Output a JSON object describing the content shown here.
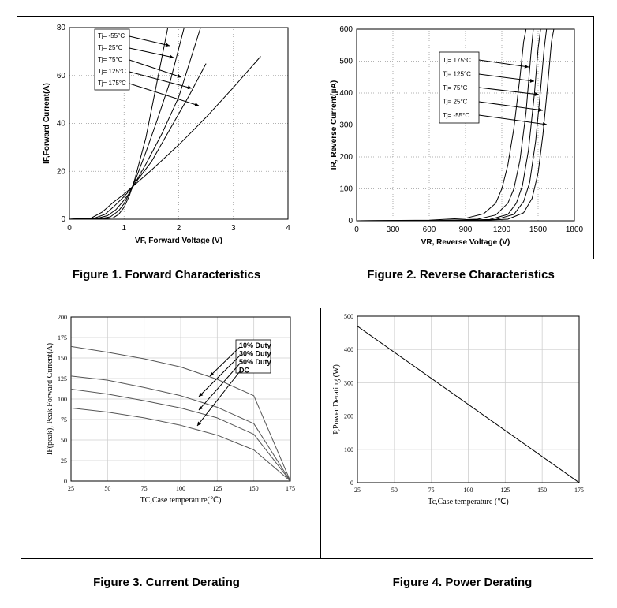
{
  "chart_data": [
    {
      "id": "fig1",
      "type": "line",
      "caption": "Figure 1. Forward Characteristics",
      "xlabel": "VF, Forward Voltage (V)",
      "ylabel": "IF,Forward Current(A)",
      "xlim": [
        0,
        4
      ],
      "ylim": [
        0,
        80
      ],
      "xticks": [
        0,
        1,
        2,
        3,
        4
      ],
      "yticks": [
        0,
        20,
        40,
        60,
        80
      ],
      "grid": true,
      "legend_placement": "top-left",
      "series": [
        {
          "name": "Tj= -55°C",
          "x": [
            0,
            0.6,
            0.8,
            0.9,
            1.0,
            1.1,
            1.2,
            1.4,
            1.6,
            1.8
          ],
          "y": [
            0,
            0.1,
            0.6,
            2,
            5,
            10,
            17,
            34,
            57,
            80
          ]
        },
        {
          "name": "Tj= 25°C",
          "x": [
            0,
            0.55,
            0.75,
            0.9,
            1.0,
            1.1,
            1.2,
            1.4,
            1.6,
            1.85,
            2.1
          ],
          "y": [
            0,
            0.2,
            1,
            3.5,
            6.5,
            11,
            16,
            28,
            41,
            58,
            80
          ]
        },
        {
          "name": "Tj= 75°C",
          "x": [
            0,
            0.5,
            0.7,
            0.85,
            1.0,
            1.1,
            1.2,
            1.4,
            1.7,
            2.0,
            2.4
          ],
          "y": [
            0,
            0.3,
            1.5,
            4,
            8,
            11,
            15,
            23,
            36,
            51,
            80
          ]
        },
        {
          "name": "Tj= 125°C",
          "x": [
            0,
            0.45,
            0.65,
            0.8,
            1.0,
            1.1,
            1.2,
            1.5,
            1.8,
            2.2,
            2.5
          ],
          "y": [
            0,
            0.4,
            2,
            5,
            9.5,
            12,
            15,
            24,
            36,
            52,
            65
          ]
        },
        {
          "name": "Tj= 175°C",
          "x": [
            0,
            0.4,
            0.6,
            0.8,
            1.0,
            1.1,
            1.2,
            1.5,
            2.0,
            2.5,
            3.0,
            3.5
          ],
          "y": [
            0,
            0.5,
            3,
            7,
            10.5,
            12.5,
            14.5,
            20.5,
            31,
            42.5,
            55,
            68
          ]
        }
      ]
    },
    {
      "id": "fig2",
      "type": "line",
      "caption": "Figure 2. Reverse Characteristics",
      "xlabel": "VR, Reverse Voltage (V)",
      "ylabel": "IR, Reverse Current(μA)",
      "xlim": [
        0,
        1800
      ],
      "ylim": [
        0,
        600
      ],
      "xticks": [
        0,
        300,
        600,
        900,
        1200,
        1500,
        1800
      ],
      "yticks": [
        0,
        100,
        200,
        300,
        400,
        500,
        600
      ],
      "grid": true,
      "legend_placement": "top-right",
      "series": [
        {
          "name": "Tj= 175°C",
          "x": [
            0,
            600,
            900,
            1050,
            1150,
            1200,
            1250,
            1300,
            1350,
            1380,
            1400
          ],
          "y": [
            0,
            2,
            8,
            22,
            55,
            100,
            175,
            290,
            450,
            560,
            600
          ]
        },
        {
          "name": "Tj= 125°C",
          "x": [
            0,
            700,
            1000,
            1150,
            1250,
            1300,
            1350,
            1400,
            1440,
            1460
          ],
          "y": [
            0,
            1,
            5,
            18,
            55,
            100,
            190,
            340,
            520,
            600
          ]
        },
        {
          "name": "Tj= 75°C",
          "x": [
            0,
            800,
            1100,
            1250,
            1320,
            1370,
            1420,
            1470,
            1500,
            1520
          ],
          "y": [
            0,
            1,
            4,
            20,
            55,
            110,
            220,
            400,
            540,
            600
          ]
        },
        {
          "name": "Tj= 25°C",
          "x": [
            0,
            900,
            1150,
            1300,
            1380,
            1430,
            1480,
            1520,
            1550,
            1570
          ],
          "y": [
            0,
            1,
            4,
            20,
            60,
            120,
            250,
            410,
            540,
            600
          ]
        },
        {
          "name": "Tj= -55°C",
          "x": [
            0,
            1000,
            1250,
            1380,
            1450,
            1500,
            1540,
            1580,
            1610,
            1630
          ],
          "y": [
            0,
            1,
            5,
            25,
            70,
            150,
            270,
            430,
            560,
            600
          ]
        }
      ]
    },
    {
      "id": "fig3",
      "type": "line",
      "caption": "Figure 3. Current Derating",
      "xlabel": "TC,Case temperature(℃)",
      "ylabel": "IF(peak), Peak Forward Current(A)",
      "xlim": [
        25,
        175
      ],
      "ylim": [
        0,
        200
      ],
      "xticks": [
        25,
        50,
        75,
        100,
        125,
        150,
        175
      ],
      "yticks": [
        0,
        25,
        50,
        75,
        100,
        125,
        150,
        175,
        200
      ],
      "grid": true,
      "legend_placement": "top-right",
      "series": [
        {
          "name": "10% Duty",
          "x": [
            25,
            50,
            75,
            100,
            125,
            150,
            175
          ],
          "y": [
            164,
            157,
            149,
            139,
            124,
            104,
            0
          ]
        },
        {
          "name": "30% Duty",
          "x": [
            25,
            50,
            75,
            100,
            125,
            150,
            175
          ],
          "y": [
            128,
            123,
            114,
            104,
            90,
            70,
            0
          ]
        },
        {
          "name": "50% Duty",
          "x": [
            25,
            50,
            75,
            100,
            125,
            150,
            175
          ],
          "y": [
            112,
            106,
            98,
            89,
            77,
            57,
            0
          ]
        },
        {
          "name": "DC",
          "x": [
            25,
            50,
            75,
            100,
            125,
            150,
            175
          ],
          "y": [
            89,
            84,
            77,
            68,
            56,
            38,
            0
          ]
        }
      ]
    },
    {
      "id": "fig4",
      "type": "line",
      "caption": "Figure 4. Power Derating",
      "xlabel": "Tc,Case temperature (℃)",
      "ylabel": "P,Power Derating (W)",
      "xlim": [
        25,
        175
      ],
      "ylim": [
        0,
        500
      ],
      "xticks": [
        25,
        50,
        75,
        100,
        125,
        150,
        175
      ],
      "yticks": [
        0,
        100,
        200,
        300,
        400,
        500
      ],
      "grid": true,
      "series": [
        {
          "x": [
            25,
            175
          ],
          "y": [
            470,
            0
          ]
        }
      ]
    }
  ]
}
